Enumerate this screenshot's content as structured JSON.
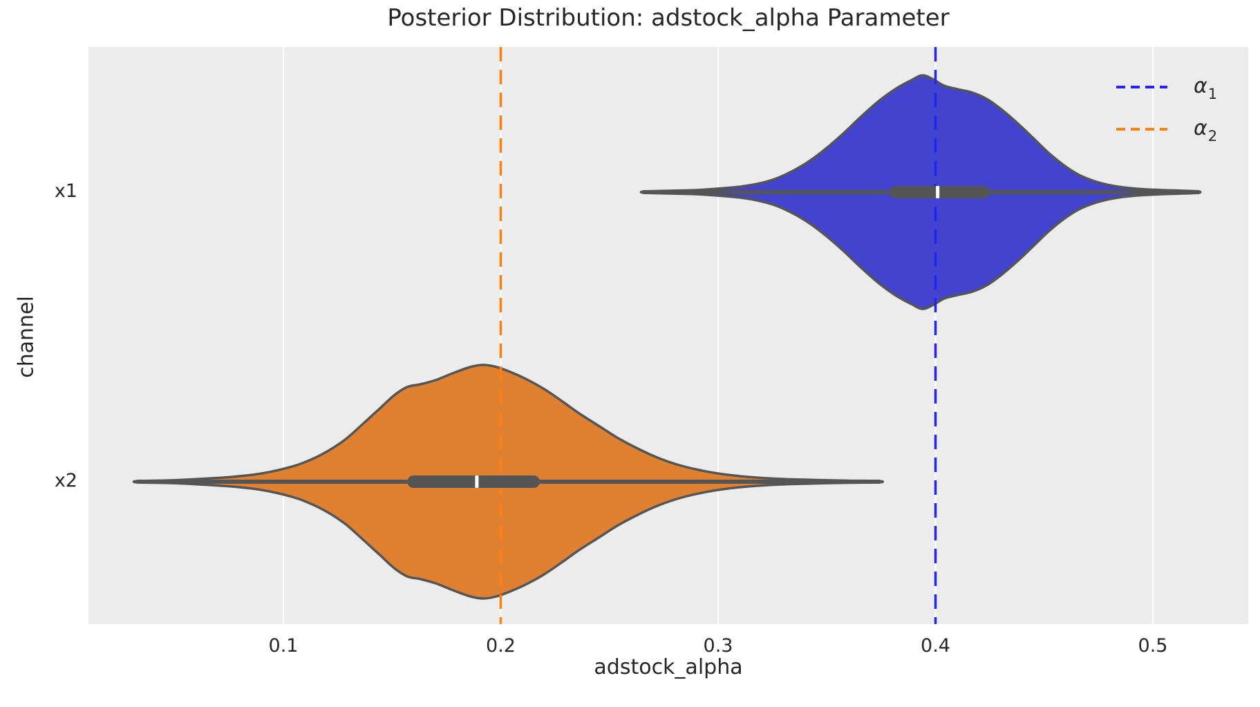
{
  "title": "Posterior Distribution: adstock_alpha Parameter",
  "axes": {
    "xlabel": "adstock_alpha",
    "ylabel": "channel",
    "xticklabels": [
      "0.1",
      "0.2",
      "0.3",
      "0.4",
      "0.5"
    ],
    "yticklabels": [
      "x1",
      "x2"
    ]
  },
  "legend": {
    "items": [
      {
        "symbol": "α",
        "subscript": "1",
        "color": "#2424f0"
      },
      {
        "symbol": "α",
        "subscript": "2",
        "color": "#ff7f0e"
      }
    ]
  },
  "colors": {
    "axes_background": "#ececec",
    "grid": "#ffffff",
    "violin_edge": "#555555",
    "box": "#555555",
    "median": "#ffffff",
    "text": "#262626"
  },
  "chart_data": {
    "type": "violin",
    "title": "Posterior Distribution: adstock_alpha Parameter",
    "xlabel": "adstock_alpha",
    "ylabel": "channel",
    "categories": [
      "x1",
      "x2"
    ],
    "xticks": [
      0.1,
      0.2,
      0.3,
      0.4,
      0.5
    ],
    "xlim": [
      0.01,
      0.544
    ],
    "grid": "vertical-only",
    "legend_position": "upper-right",
    "series": [
      {
        "channel": "x1",
        "fill_color": "#4244d0",
        "median": 0.401,
        "q1": 0.379,
        "q3": 0.425,
        "min": 0.266,
        "max": 0.521,
        "ref_line": {
          "label": "α1",
          "value": 0.4,
          "color": "#2424f0",
          "style": "dashed"
        },
        "profile": [
          [
            0.266,
            0.006
          ],
          [
            0.278,
            0.012
          ],
          [
            0.29,
            0.018
          ],
          [
            0.3,
            0.03
          ],
          [
            0.31,
            0.047
          ],
          [
            0.318,
            0.071
          ],
          [
            0.326,
            0.112
          ],
          [
            0.334,
            0.178
          ],
          [
            0.342,
            0.266
          ],
          [
            0.35,
            0.379
          ],
          [
            0.358,
            0.509
          ],
          [
            0.366,
            0.651
          ],
          [
            0.374,
            0.781
          ],
          [
            0.382,
            0.888
          ],
          [
            0.389,
            0.959
          ],
          [
            0.394,
            1.0
          ],
          [
            0.399,
            0.965
          ],
          [
            0.404,
            0.911
          ],
          [
            0.41,
            0.882
          ],
          [
            0.417,
            0.852
          ],
          [
            0.424,
            0.793
          ],
          [
            0.431,
            0.698
          ],
          [
            0.438,
            0.586
          ],
          [
            0.445,
            0.462
          ],
          [
            0.452,
            0.337
          ],
          [
            0.459,
            0.231
          ],
          [
            0.466,
            0.148
          ],
          [
            0.474,
            0.089
          ],
          [
            0.482,
            0.053
          ],
          [
            0.492,
            0.03
          ],
          [
            0.504,
            0.018
          ],
          [
            0.514,
            0.012
          ],
          [
            0.521,
            0.006
          ]
        ]
      },
      {
        "channel": "x2",
        "fill_color": "#e08132",
        "median": 0.189,
        "q1": 0.157,
        "q3": 0.218,
        "min": 0.033,
        "max": 0.374,
        "ref_line": {
          "label": "α2",
          "value": 0.2,
          "color": "#ff7f0e",
          "style": "dashed"
        },
        "profile": [
          [
            0.033,
            0.006
          ],
          [
            0.048,
            0.012
          ],
          [
            0.062,
            0.024
          ],
          [
            0.076,
            0.041
          ],
          [
            0.088,
            0.065
          ],
          [
            0.098,
            0.101
          ],
          [
            0.108,
            0.154
          ],
          [
            0.118,
            0.237
          ],
          [
            0.128,
            0.355
          ],
          [
            0.136,
            0.485
          ],
          [
            0.144,
            0.621
          ],
          [
            0.151,
            0.74
          ],
          [
            0.157,
            0.811
          ],
          [
            0.163,
            0.834
          ],
          [
            0.17,
            0.87
          ],
          [
            0.178,
            0.929
          ],
          [
            0.186,
            0.982
          ],
          [
            0.192,
            1.0
          ],
          [
            0.198,
            0.982
          ],
          [
            0.205,
            0.935
          ],
          [
            0.212,
            0.876
          ],
          [
            0.22,
            0.793
          ],
          [
            0.228,
            0.692
          ],
          [
            0.236,
            0.586
          ],
          [
            0.245,
            0.479
          ],
          [
            0.254,
            0.373
          ],
          [
            0.263,
            0.284
          ],
          [
            0.272,
            0.207
          ],
          [
            0.281,
            0.148
          ],
          [
            0.291,
            0.101
          ],
          [
            0.302,
            0.065
          ],
          [
            0.314,
            0.041
          ],
          [
            0.328,
            0.024
          ],
          [
            0.345,
            0.015
          ],
          [
            0.36,
            0.009
          ],
          [
            0.374,
            0.006
          ]
        ]
      }
    ]
  }
}
